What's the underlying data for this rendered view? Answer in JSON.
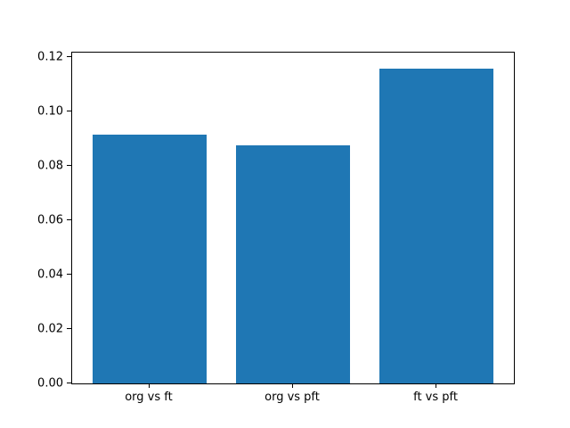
{
  "chart_data": {
    "type": "bar",
    "categories": [
      "org vs ft",
      "org vs pft",
      "ft vs pft"
    ],
    "values": [
      0.0915,
      0.0878,
      0.116
    ],
    "title": "",
    "xlabel": "",
    "ylabel": "",
    "ylim": [
      0,
      0.1218
    ],
    "yticks": [
      0.0,
      0.02,
      0.04,
      0.06,
      0.08,
      0.1,
      0.12
    ],
    "ytick_labels": [
      "0.00",
      "0.02",
      "0.04",
      "0.06",
      "0.08",
      "0.10",
      "0.12"
    ],
    "bar_color": "#1f77b4",
    "bar_width_fraction": 0.8,
    "grid": false,
    "legend": null
  }
}
